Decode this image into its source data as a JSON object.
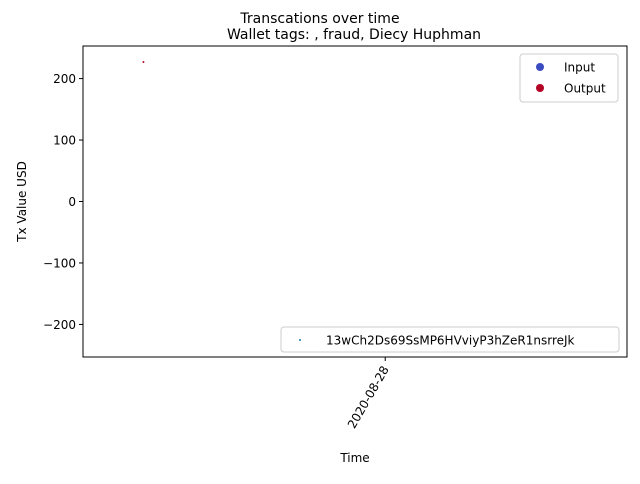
{
  "figure": {
    "suptitle": "Transcations over time"
  },
  "chart_data": {
    "type": "scatter",
    "title": "Wallet tags: , fraud, Diecy Huphman",
    "xlabel": "Time",
    "ylabel": "Tx Value USD",
    "y_ticks": [
      200,
      100,
      0,
      -100,
      -200
    ],
    "y_tick_labels": [
      "200",
      "100",
      "0",
      "−100",
      "−200"
    ],
    "ylim": [
      -253,
      253
    ],
    "x_ticks": [
      "2020-08-28"
    ],
    "grid": false,
    "series": [
      {
        "name": "Output",
        "color": "#b40426",
        "points": [
          {
            "x": "2020-08-20",
            "y": 227
          }
        ]
      }
    ],
    "legend_direction": {
      "placement": "upper right",
      "entries": [
        {
          "label": "Input",
          "color": "#3b4cc0"
        },
        {
          "label": "Output",
          "color": "#b40426"
        }
      ]
    },
    "legend_wallet": {
      "placement": "lower right",
      "entries": [
        {
          "label": "13wCh2Ds69SsMP6HVviyP3hZeR1nsrreJk",
          "color": "#1f77b4"
        }
      ]
    }
  }
}
